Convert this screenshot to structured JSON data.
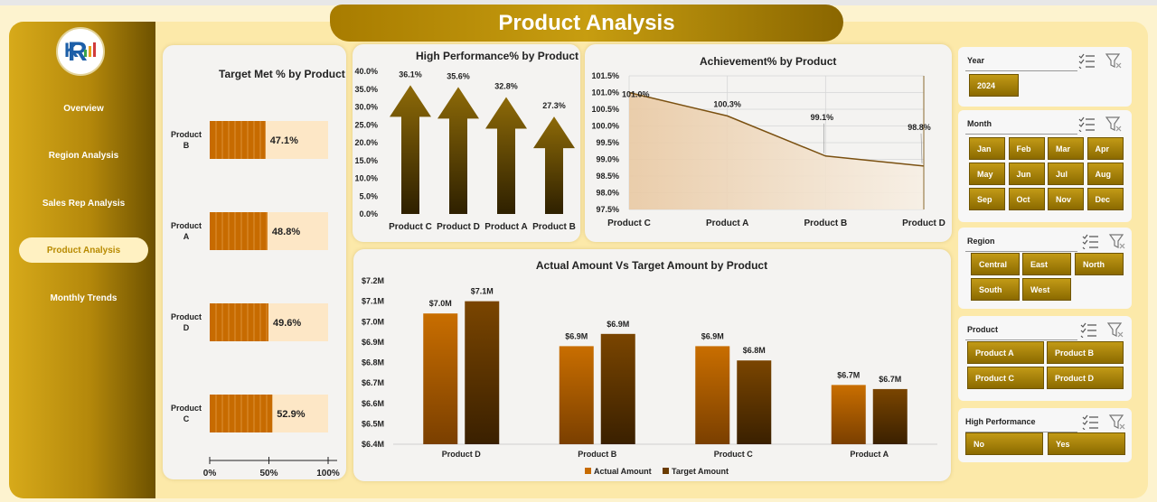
{
  "header": {
    "title": "Product Analysis"
  },
  "sidebar": {
    "items": [
      {
        "label": "Overview",
        "active": false
      },
      {
        "label": "Region Analysis",
        "active": false
      },
      {
        "label": "Sales Rep Analysis",
        "active": false
      },
      {
        "label": "Product Analysis",
        "active": true
      },
      {
        "label": "Monthly Trends",
        "active": false
      }
    ]
  },
  "colors": {
    "accent": "#c49a12",
    "bar_dark": "#7a4a00",
    "bar_orange": "#c76b00",
    "bar_light": "#fde7c6"
  },
  "slicers": {
    "year": {
      "title": "Year",
      "options": [
        "2024"
      ]
    },
    "month": {
      "title": "Month",
      "options": [
        "Jan",
        "Feb",
        "Mar",
        "Apr",
        "May",
        "Jun",
        "Jul",
        "Aug",
        "Sep",
        "Oct",
        "Nov",
        "Dec"
      ]
    },
    "region": {
      "title": "Region",
      "options": [
        "Central",
        "East",
        "North",
        "South",
        "West"
      ]
    },
    "product": {
      "title": "Product",
      "options": [
        "Product A",
        "Product B",
        "Product C",
        "Product D"
      ]
    },
    "high_performance": {
      "title": "High Performance",
      "options": [
        "No",
        "Yes"
      ]
    }
  },
  "chart_data": [
    {
      "type": "bar",
      "orientation": "horizontal",
      "title": "Target Met % by Product",
      "categories": [
        "Product B",
        "Product A",
        "Product D",
        "Product C"
      ],
      "values": [
        47.1,
        48.8,
        49.6,
        52.9
      ],
      "data_labels": [
        "47.1%",
        "48.8%",
        "49.6%",
        "52.9%"
      ],
      "xlim": [
        0,
        100
      ],
      "x_ticks": [
        "0%",
        "50%",
        "100%"
      ]
    },
    {
      "type": "bar",
      "title": "High Performance% by Product",
      "categories": [
        "Product C",
        "Product D",
        "Product A",
        "Product B"
      ],
      "values": [
        36.1,
        35.6,
        32.8,
        27.3
      ],
      "data_labels": [
        "36.1%",
        "35.6%",
        "32.8%",
        "27.3%"
      ],
      "ylim": [
        0,
        40
      ],
      "y_ticks": [
        "0.0%",
        "5.0%",
        "10.0%",
        "15.0%",
        "20.0%",
        "25.0%",
        "30.0%",
        "35.0%",
        "40.0%"
      ]
    },
    {
      "type": "area",
      "title": "Achievement% by Product",
      "categories": [
        "Product C",
        "Product A",
        "Product B",
        "Product D"
      ],
      "values": [
        101.0,
        100.3,
        99.1,
        98.8
      ],
      "data_labels": [
        "101.0%",
        "100.3%",
        "99.1%",
        "98.8%"
      ],
      "ylim": [
        97.5,
        101.5
      ],
      "y_ticks": [
        "97.5%",
        "98.0%",
        "98.5%",
        "99.0%",
        "99.5%",
        "100.0%",
        "100.5%",
        "101.0%",
        "101.5%"
      ],
      "grid": true
    },
    {
      "type": "bar",
      "title": "Actual Amount Vs Target Amount by Product",
      "categories": [
        "Product D",
        "Product B",
        "Product C",
        "Product A"
      ],
      "series": [
        {
          "name": "Actual Amount",
          "values": [
            7.04,
            6.88,
            6.88,
            6.69
          ],
          "data_labels": [
            "$7.0M",
            "$6.9M",
            "$6.9M",
            "$6.7M"
          ]
        },
        {
          "name": "Target Amount",
          "values": [
            7.1,
            6.94,
            6.81,
            6.67
          ],
          "data_labels": [
            "$7.1M",
            "$6.9M",
            "$6.8M",
            "$6.7M"
          ]
        }
      ],
      "ylim": [
        6.4,
        7.2
      ],
      "y_ticks": [
        "$6.4M",
        "$6.5M",
        "$6.6M",
        "$6.7M",
        "$6.8M",
        "$6.9M",
        "$7.0M",
        "$7.1M",
        "$7.2M"
      ],
      "legend": "bottom"
    }
  ]
}
